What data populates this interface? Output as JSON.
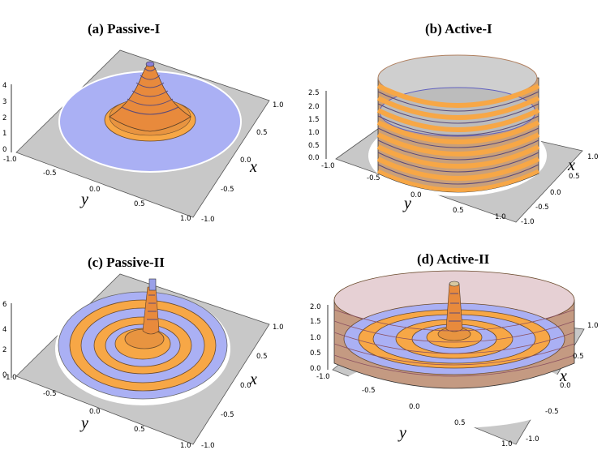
{
  "panels": [
    {
      "id": "a",
      "title": "(a) Passive-I",
      "z_ticks": [
        "4",
        "3",
        "2",
        "1",
        "0"
      ],
      "y_ticks": [
        "-1.0",
        "-0.5",
        "0.0",
        "0.5",
        "1.0"
      ],
      "x_ticks": [
        "1.0",
        "0.5",
        "0.0",
        "-0.5",
        "-1.0"
      ],
      "x_label": "x",
      "y_label": "y"
    },
    {
      "id": "b",
      "title": "(b) Active-I",
      "z_ticks": [
        "2.5",
        "2.0",
        "1.5",
        "1.0",
        "0.5",
        "0.0"
      ],
      "y_ticks": [
        "-1.0",
        "-0.5",
        "0.0",
        "0.5",
        "1.0"
      ],
      "x_ticks": [
        "1.0",
        "0.5",
        "0.0",
        "-0.5",
        "-1.0"
      ],
      "x_label": "x",
      "y_label": "y"
    },
    {
      "id": "c",
      "title": "(c) Passive-II",
      "z_ticks": [
        "6",
        "4",
        "2",
        "0"
      ],
      "y_ticks": [
        "-1.0",
        "-0.5",
        "0.0",
        "0.5",
        "1.0"
      ],
      "x_ticks": [
        "1.0",
        "0.5",
        "0.0",
        "-0.5",
        "-1.0"
      ],
      "x_label": "x",
      "y_label": "y"
    },
    {
      "id": "d",
      "title": "(d) Active-II",
      "z_ticks": [
        "2.0",
        "1.5",
        "1.0",
        "0.5",
        "0.0"
      ],
      "y_ticks": [
        "-1.0",
        "-0.5",
        "0.0",
        "0.5",
        "1.0"
      ],
      "x_ticks": [
        "1.0",
        "0.5",
        "0.0",
        "-0.5",
        "-1.0"
      ],
      "x_label": "x",
      "y_label": "y"
    }
  ],
  "colors": {
    "floor": "#c8c8c8",
    "disk": "#aab0f4",
    "band": "#f7a746",
    "band_edge": "#6a4a2c",
    "outline": "#333333"
  }
}
